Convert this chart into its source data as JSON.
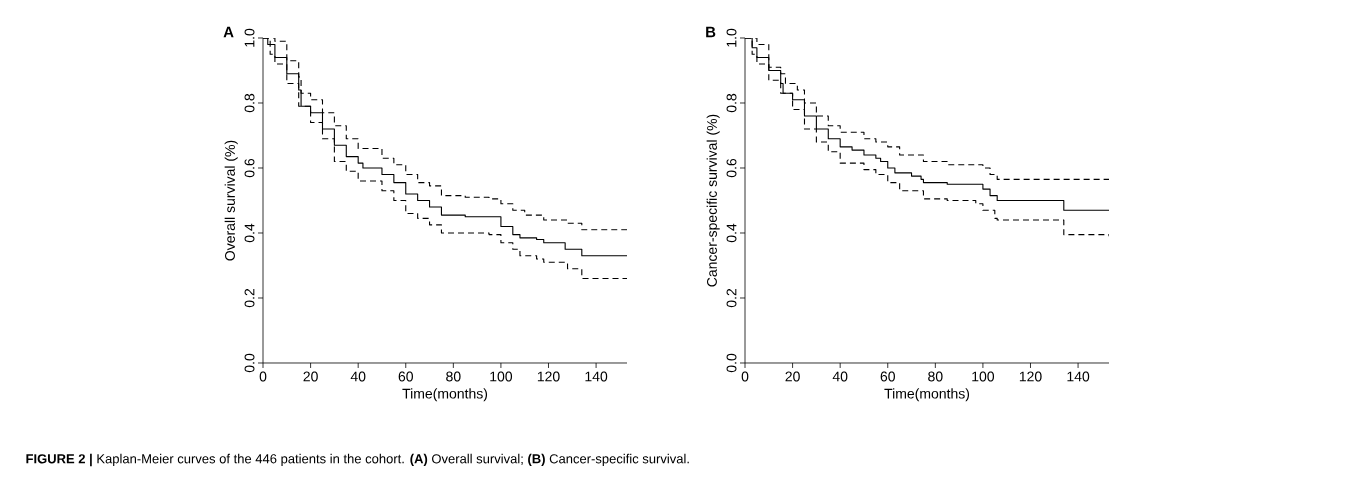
{
  "chart_data": [
    {
      "type": "step",
      "title": "A",
      "xlabel": "Time(months)",
      "ylabel": "Overall survival (%)",
      "xlim": [
        0,
        153
      ],
      "ylim": [
        0,
        1
      ],
      "xticks": [
        0,
        20,
        40,
        60,
        80,
        100,
        120,
        140
      ],
      "yticks": [
        {
          "value": 0,
          "label": "0.0"
        },
        {
          "value": 0.2,
          "label": "0.2"
        },
        {
          "value": 0.4,
          "label": "0.4"
        },
        {
          "value": 0.6,
          "label": "0.6"
        },
        {
          "value": 0.8,
          "label": "0.8"
        },
        {
          "value": 1,
          "label": "1.0"
        }
      ],
      "series": [
        {
          "color": "#000000",
          "line_style": "solid",
          "x": [
            0,
            2,
            5,
            10,
            15,
            16,
            20,
            25,
            30,
            35,
            40,
            42,
            50,
            55,
            60,
            65,
            70,
            75,
            85,
            95,
            100,
            105,
            108,
            115,
            118,
            127,
            134,
            153
          ],
          "values": [
            1.0,
            0.98,
            0.94,
            0.89,
            0.84,
            0.79,
            0.77,
            0.72,
            0.67,
            0.635,
            0.615,
            0.6,
            0.58,
            0.555,
            0.52,
            0.5,
            0.48,
            0.455,
            0.45,
            0.45,
            0.42,
            0.395,
            0.385,
            0.38,
            0.37,
            0.35,
            0.33,
            0.33
          ]
        },
        {
          "color": "#000000",
          "line_style": "dashed",
          "x": [
            0,
            5,
            10,
            15,
            16,
            20,
            25,
            30,
            35,
            40,
            50,
            55,
            60,
            65,
            70,
            75,
            85,
            95,
            100,
            105,
            110,
            118,
            128,
            134,
            153
          ],
          "values": [
            1.0,
            0.99,
            0.93,
            0.88,
            0.83,
            0.81,
            0.77,
            0.73,
            0.69,
            0.66,
            0.63,
            0.61,
            0.58,
            0.555,
            0.545,
            0.515,
            0.51,
            0.505,
            0.49,
            0.47,
            0.455,
            0.44,
            0.43,
            0.41,
            0.41
          ]
        },
        {
          "color": "#000000",
          "line_style": "dashed",
          "x": [
            0,
            3,
            5,
            10,
            15,
            20,
            25,
            30,
            35,
            40,
            50,
            55,
            60,
            65,
            70,
            75,
            95,
            100,
            105,
            108,
            115,
            118,
            127,
            128,
            134,
            153
          ],
          "values": [
            1.0,
            0.95,
            0.92,
            0.86,
            0.79,
            0.74,
            0.69,
            0.62,
            0.59,
            0.56,
            0.53,
            0.5,
            0.46,
            0.445,
            0.425,
            0.4,
            0.395,
            0.37,
            0.35,
            0.33,
            0.32,
            0.31,
            0.31,
            0.29,
            0.26,
            0.26
          ]
        }
      ],
      "annotations": [
        "**FIGURE 2 |** Kaplan-Meier curves of the 446 patients in the cohort. **(A)** Overall survival; **(B)** Cancer-specific survival."
      ]
    },
    {
      "type": "step",
      "title": "B",
      "xlabel": "Time(months)",
      "ylabel": "Cancer-specific survival (%)",
      "xlim": [
        0,
        153
      ],
      "ylim": [
        0,
        1
      ],
      "xticks": [
        0,
        20,
        40,
        60,
        80,
        100,
        120,
        140
      ],
      "yticks": [
        {
          "value": 0,
          "label": "0.0"
        },
        {
          "value": 0.2,
          "label": "0.2"
        },
        {
          "value": 0.4,
          "label": "0.4"
        },
        {
          "value": 0.6,
          "label": "0.6"
        },
        {
          "value": 0.8,
          "label": "0.8"
        },
        {
          "value": 1,
          "label": "1.0"
        }
      ],
      "series": [
        {
          "color": "#000000",
          "line_style": "solid",
          "x": [
            0,
            3,
            5,
            10,
            15,
            16,
            20,
            25,
            30,
            35,
            40,
            45,
            50,
            55,
            57,
            60,
            63,
            70,
            74,
            75,
            85,
            97,
            100,
            103,
            106,
            134,
            153
          ],
          "values": [
            1.0,
            0.97,
            0.94,
            0.9,
            0.86,
            0.83,
            0.81,
            0.76,
            0.72,
            0.69,
            0.665,
            0.655,
            0.64,
            0.63,
            0.62,
            0.6,
            0.585,
            0.575,
            0.565,
            0.555,
            0.55,
            0.55,
            0.535,
            0.515,
            0.5,
            0.47,
            0.47
          ]
        },
        {
          "color": "#000000",
          "line_style": "dashed",
          "x": [
            0,
            5,
            10,
            15,
            17,
            22,
            25,
            30,
            35,
            40,
            50,
            55,
            60,
            65,
            75,
            85,
            97,
            100,
            103,
            106,
            153
          ],
          "values": [
            1.0,
            0.98,
            0.91,
            0.89,
            0.86,
            0.84,
            0.8,
            0.76,
            0.73,
            0.71,
            0.69,
            0.68,
            0.665,
            0.64,
            0.62,
            0.61,
            0.61,
            0.6,
            0.58,
            0.565,
            0.56
          ]
        },
        {
          "color": "#000000",
          "line_style": "dashed",
          "x": [
            0,
            3,
            5,
            10,
            15,
            20,
            25,
            30,
            35,
            40,
            50,
            55,
            60,
            65,
            75,
            85,
            97,
            100,
            105,
            106,
            134,
            153
          ],
          "values": [
            1.0,
            0.95,
            0.92,
            0.87,
            0.83,
            0.78,
            0.72,
            0.68,
            0.65,
            0.615,
            0.595,
            0.58,
            0.555,
            0.53,
            0.505,
            0.5,
            0.49,
            0.47,
            0.445,
            0.44,
            0.395,
            0.39
          ]
        }
      ]
    }
  ]
}
